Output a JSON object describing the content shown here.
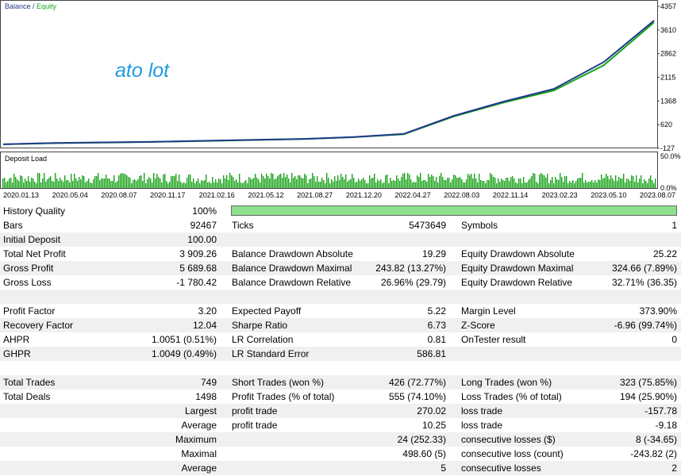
{
  "chart": {
    "legend_balance": "Balance",
    "legend_sep": " / ",
    "legend_equity": "Equity",
    "watermark": "ato lot",
    "deposit_label": "Deposit Load",
    "y_ticks": [
      "4357",
      "3610",
      "2862",
      "2115",
      "1368",
      "620",
      "-127"
    ],
    "load_ticks": [
      "50.0%",
      "0.0%"
    ],
    "x_ticks": [
      "2020.01.13",
      "2020.05.04",
      "2020.08.07",
      "2020.11.17",
      "2021.02.16",
      "2021.05.12",
      "2021.08.27",
      "2021.12.20",
      "2022.04.27",
      "2022.08.03",
      "2022.11.14",
      "2023.02.23",
      "2023.05.10",
      "2023.08.07"
    ],
    "colors": {
      "balance": "#1f3a8a",
      "equity": "#1aa31a",
      "watermark": "#1e9be0",
      "load": "#1aa31a"
    }
  },
  "chart_data": {
    "type": "line",
    "xlabel": "",
    "ylabel": "",
    "ylim": [
      -127,
      4357
    ],
    "x": [
      "2020.01.13",
      "2020.05.04",
      "2020.08.07",
      "2020.11.17",
      "2021.02.16",
      "2021.05.12",
      "2021.08.27",
      "2021.12.20",
      "2022.04.27",
      "2022.08.03",
      "2022.11.14",
      "2023.02.23",
      "2023.05.10",
      "2023.08.07"
    ],
    "series": [
      {
        "name": "Balance",
        "values": [
          0,
          40,
          60,
          80,
          110,
          140,
          170,
          230,
          330,
          900,
          1350,
          1750,
          2600,
          3909
        ]
      },
      {
        "name": "Equity",
        "values": [
          0,
          35,
          55,
          75,
          105,
          135,
          165,
          225,
          320,
          880,
          1320,
          1700,
          2500,
          3850
        ]
      }
    ]
  },
  "report": {
    "history_quality": {
      "label": "History Quality",
      "value": "100%",
      "fraction": 1.0
    },
    "rows": [
      {
        "shade": false,
        "c1": [
          "Bars",
          "92467"
        ],
        "c2": [
          "Ticks",
          "5473649"
        ],
        "c3": [
          "Symbols",
          "1"
        ]
      },
      {
        "shade": true,
        "c1": [
          "Initial Deposit",
          "100.00"
        ],
        "c2": [
          "",
          ""
        ],
        "c3": [
          "",
          ""
        ]
      },
      {
        "shade": false,
        "c1": [
          "Total Net Profit",
          "3 909.26"
        ],
        "c2": [
          "Balance Drawdown Absolute",
          "19.29"
        ],
        "c3": [
          "Equity Drawdown Absolute",
          "25.22"
        ]
      },
      {
        "shade": true,
        "c1": [
          "Gross Profit",
          "5 689.68"
        ],
        "c2": [
          "Balance Drawdown Maximal",
          "243.82 (13.27%)"
        ],
        "c3": [
          "Equity Drawdown Maximal",
          "324.66 (7.89%)"
        ]
      },
      {
        "shade": false,
        "c1": [
          "Gross Loss",
          "-1 780.42"
        ],
        "c2": [
          "Balance Drawdown Relative",
          "26.96% (29.79)"
        ],
        "c3": [
          "Equity Drawdown Relative",
          "32.71% (36.35)"
        ]
      },
      {
        "shade": true,
        "c1": [
          "",
          ""
        ],
        "c2": [
          "",
          ""
        ],
        "c3": [
          "",
          ""
        ]
      },
      {
        "shade": false,
        "c1": [
          "Profit Factor",
          "3.20"
        ],
        "c2": [
          "Expected Payoff",
          "5.22"
        ],
        "c3": [
          "Margin Level",
          "373.90%"
        ]
      },
      {
        "shade": true,
        "c1": [
          "Recovery Factor",
          "12.04"
        ],
        "c2": [
          "Sharpe Ratio",
          "6.73"
        ],
        "c3": [
          "Z-Score",
          "-6.96 (99.74%)"
        ]
      },
      {
        "shade": false,
        "c1": [
          "AHPR",
          "1.0051 (0.51%)"
        ],
        "c2": [
          "LR Correlation",
          "0.81"
        ],
        "c3": [
          "OnTester result",
          "0"
        ]
      },
      {
        "shade": true,
        "c1": [
          "GHPR",
          "1.0049 (0.49%)"
        ],
        "c2": [
          "LR Standard Error",
          "586.81"
        ],
        "c3": [
          "",
          ""
        ]
      },
      {
        "shade": false,
        "c1": [
          "",
          ""
        ],
        "c2": [
          "",
          ""
        ],
        "c3": [
          "",
          ""
        ]
      },
      {
        "shade": true,
        "c1": [
          "Total Trades",
          "749"
        ],
        "c2": [
          "Short Trades (won %)",
          "426 (72.77%)"
        ],
        "c3": [
          "Long Trades (won %)",
          "323 (75.85%)"
        ]
      },
      {
        "shade": false,
        "c1": [
          "Total Deals",
          "1498"
        ],
        "c2": [
          "Profit Trades (% of total)",
          "555 (74.10%)"
        ],
        "c3": [
          "Loss Trades (% of total)",
          "194 (25.90%)"
        ]
      },
      {
        "shade": true,
        "c1": [
          "",
          "Largest"
        ],
        "c2": [
          "profit trade",
          "270.02"
        ],
        "c3": [
          "loss trade",
          "-157.78"
        ]
      },
      {
        "shade": false,
        "c1": [
          "",
          "Average"
        ],
        "c2": [
          "profit trade",
          "10.25"
        ],
        "c3": [
          "loss trade",
          "-9.18"
        ]
      },
      {
        "shade": true,
        "c1": [
          "",
          "Maximum"
        ],
        "c2": [
          "",
          "24 (252.33)"
        ],
        "c3": [
          "consecutive losses ($)",
          "8 (-34.65)"
        ]
      },
      {
        "shade": false,
        "c1": [
          "",
          "Maximal"
        ],
        "c2": [
          "",
          "498.60 (5)"
        ],
        "c3": [
          "consecutive loss (count)",
          "-243.82 (2)"
        ]
      },
      {
        "shade": true,
        "c1": [
          "",
          "Average"
        ],
        "c2": [
          "",
          "5"
        ],
        "c3": [
          "consecutive losses",
          "2"
        ]
      }
    ]
  }
}
